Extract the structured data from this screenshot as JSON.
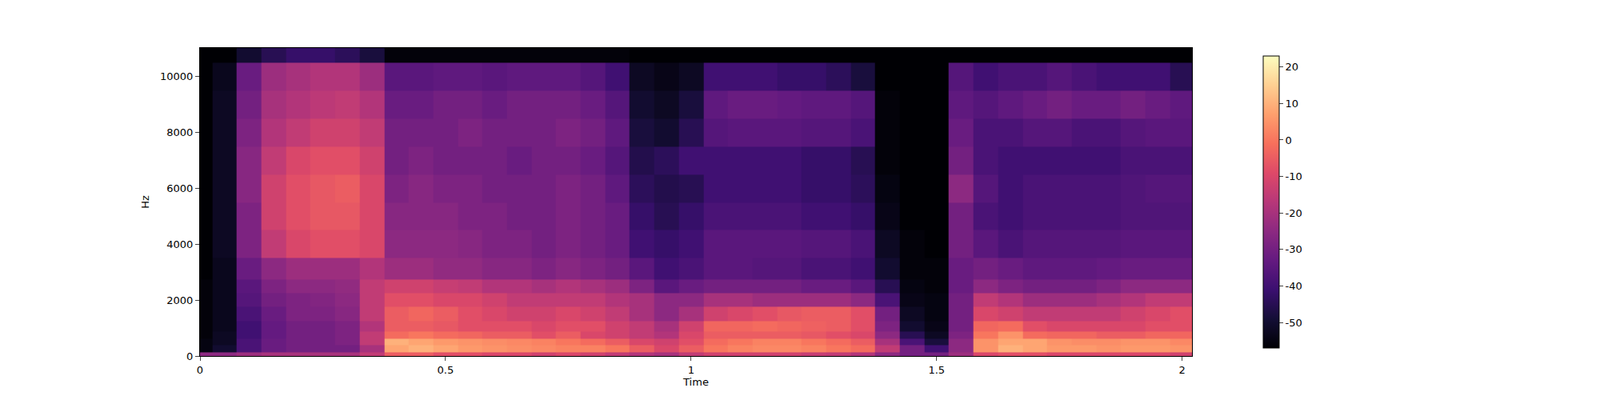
{
  "chart_data": {
    "type": "heatmap",
    "x_label": "Time",
    "y_label": "Hz",
    "xlim": [
      0,
      2.02
    ],
    "xticks": [
      0,
      0.5,
      1,
      1.5,
      2
    ],
    "ylim": [
      0,
      11025
    ],
    "yticks": [
      0,
      2000,
      4000,
      6000,
      8000,
      10000
    ],
    "zlim": [
      -57,
      23
    ],
    "zticks": [
      -50,
      -40,
      -30,
      -20,
      -10,
      0,
      10,
      20
    ],
    "x": [
      0,
      0.05,
      0.1,
      0.15,
      0.2,
      0.25,
      0.3,
      0.35,
      0.4,
      0.45,
      0.5,
      0.55,
      0.6,
      0.65,
      0.7,
      0.75,
      0.8,
      0.85,
      0.9,
      0.95,
      1.0,
      1.05,
      1.1,
      1.15,
      1.2,
      1.25,
      1.3,
      1.35,
      1.4,
      1.45,
      1.5,
      1.55,
      1.6,
      1.65,
      1.7,
      1.75,
      1.8,
      1.85,
      1.9,
      1.95,
      2.0
    ],
    "y": [
      0,
      250,
      500,
      750,
      1000,
      1500,
      2000,
      2500,
      3000,
      4000,
      5000,
      6000,
      7000,
      8000,
      9000,
      10000,
      11000
    ],
    "cells": [
      [
        -25,
        -25,
        -22,
        -20,
        -20,
        -20,
        -20,
        -15,
        -5,
        -5,
        -8,
        -8,
        -10,
        -10,
        -12,
        -10,
        -12,
        -15,
        -18,
        -20,
        -15,
        -12,
        -12,
        -12,
        -12,
        -14,
        -15,
        -18,
        -25,
        -30,
        -30,
        -22,
        -10,
        -8,
        -8,
        -10,
        -10,
        -10,
        -10,
        -10,
        -12
      ],
      [
        -55,
        -50,
        -38,
        -32,
        -30,
        -30,
        -30,
        -20,
        8,
        10,
        8,
        6,
        5,
        4,
        3,
        2,
        2,
        0,
        -5,
        -10,
        -5,
        0,
        2,
        3,
        3,
        2,
        0,
        -2,
        -15,
        -30,
        -40,
        -25,
        5,
        10,
        8,
        6,
        6,
        5,
        6,
        6,
        5
      ],
      [
        -55,
        -52,
        -38,
        -32,
        -30,
        -30,
        -28,
        -15,
        10,
        8,
        6,
        5,
        4,
        3,
        2,
        0,
        -2,
        -5,
        -10,
        -12,
        -8,
        -2,
        0,
        2,
        2,
        0,
        -2,
        -5,
        -20,
        -38,
        -48,
        -25,
        5,
        8,
        8,
        5,
        4,
        4,
        5,
        5,
        3
      ],
      [
        -56,
        -52,
        -40,
        -33,
        -30,
        -30,
        -28,
        -15,
        -2,
        0,
        -2,
        -3,
        -5,
        -5,
        -8,
        -5,
        -10,
        -12,
        -15,
        -18,
        -10,
        -5,
        -5,
        -5,
        -5,
        -6,
        -8,
        -10,
        -25,
        -45,
        -52,
        -28,
        0,
        5,
        -2,
        -3,
        -3,
        -5,
        -5,
        -3,
        -3
      ],
      [
        -56,
        -53,
        -40,
        -33,
        -30,
        -30,
        -28,
        -18,
        -5,
        -5,
        -6,
        -8,
        -8,
        -8,
        -10,
        -8,
        -8,
        -12,
        -15,
        -20,
        -12,
        -3,
        -3,
        -2,
        -3,
        -4,
        -5,
        -8,
        -28,
        -50,
        -54,
        -30,
        -3,
        -2,
        -8,
        -10,
        -10,
        -10,
        -10,
        -8,
        -8
      ],
      [
        -56,
        -53,
        -38,
        -32,
        -28,
        -28,
        -26,
        -15,
        -5,
        -3,
        -5,
        -8,
        -10,
        -12,
        -12,
        -10,
        -12,
        -15,
        -20,
        -25,
        -20,
        -12,
        -10,
        -8,
        -6,
        -5,
        -5,
        -8,
        -30,
        -52,
        -55,
        -30,
        -10,
        -12,
        -15,
        -15,
        -15,
        -15,
        -12,
        -10,
        -8
      ],
      [
        -56,
        -53,
        -36,
        -30,
        -28,
        -27,
        -25,
        -15,
        -8,
        -8,
        -10,
        -10,
        -12,
        -15,
        -15,
        -15,
        -15,
        -18,
        -20,
        -25,
        -25,
        -20,
        -20,
        -22,
        -22,
        -22,
        -22,
        -25,
        -38,
        -54,
        -55,
        -30,
        -15,
        -18,
        -22,
        -22,
        -22,
        -20,
        -18,
        -15,
        -15
      ],
      [
        -56,
        -53,
        -35,
        -28,
        -25,
        -25,
        -24,
        -15,
        -12,
        -12,
        -14,
        -15,
        -18,
        -18,
        -20,
        -18,
        -20,
        -22,
        -28,
        -35,
        -32,
        -30,
        -30,
        -30,
        -30,
        -32,
        -32,
        -35,
        -45,
        -55,
        -56,
        -32,
        -25,
        -28,
        -30,
        -30,
        -30,
        -28,
        -25,
        -25,
        -25
      ],
      [
        -57,
        -53,
        -32,
        -25,
        -22,
        -22,
        -22,
        -18,
        -22,
        -22,
        -24,
        -24,
        -26,
        -26,
        -28,
        -26,
        -28,
        -30,
        -35,
        -40,
        -38,
        -35,
        -35,
        -36,
        -36,
        -38,
        -38,
        -40,
        -50,
        -56,
        -56,
        -32,
        -30,
        -32,
        -34,
        -34,
        -34,
        -33,
        -32,
        -32,
        -32
      ],
      [
        -57,
        -52,
        -28,
        -15,
        -10,
        -8,
        -8,
        -10,
        -25,
        -25,
        -25,
        -26,
        -28,
        -28,
        -30,
        -28,
        -30,
        -32,
        -40,
        -42,
        -40,
        -35,
        -35,
        -35,
        -35,
        -36,
        -36,
        -38,
        -52,
        -56,
        -57,
        -30,
        -35,
        -38,
        -36,
        -36,
        -36,
        -36,
        -35,
        -35,
        -35
      ],
      [
        -57,
        -52,
        -28,
        -12,
        -8,
        -6,
        -6,
        -10,
        -26,
        -26,
        -26,
        -28,
        -28,
        -30,
        -30,
        -28,
        -30,
        -32,
        -42,
        -45,
        -42,
        -38,
        -38,
        -38,
        -38,
        -40,
        -40,
        -42,
        -54,
        -57,
        -57,
        -30,
        -38,
        -40,
        -38,
        -38,
        -38,
        -38,
        -37,
        -37,
        -37
      ],
      [
        -57,
        -52,
        -26,
        -12,
        -8,
        -6,
        -5,
        -10,
        -28,
        -26,
        -28,
        -28,
        -30,
        -30,
        -30,
        -28,
        -30,
        -34,
        -44,
        -46,
        -45,
        -40,
        -40,
        -40,
        -40,
        -42,
        -42,
        -44,
        -55,
        -57,
        -57,
        -25,
        -36,
        -40,
        -38,
        -38,
        -38,
        -38,
        -37,
        -36,
        -36
      ],
      [
        -57,
        -52,
        -26,
        -15,
        -10,
        -8,
        -8,
        -12,
        -30,
        -28,
        -30,
        -30,
        -30,
        -32,
        -30,
        -30,
        -32,
        -36,
        -46,
        -44,
        -40,
        -40,
        -40,
        -40,
        -40,
        -42,
        -42,
        -45,
        -56,
        -57,
        -57,
        -30,
        -38,
        -40,
        -40,
        -40,
        -40,
        -40,
        -38,
        -38,
        -38
      ],
      [
        -57,
        -52,
        -28,
        -18,
        -15,
        -12,
        -12,
        -15,
        -30,
        -30,
        -30,
        -28,
        -30,
        -30,
        -30,
        -28,
        -30,
        -34,
        -48,
        -50,
        -45,
        -36,
        -35,
        -35,
        -35,
        -36,
        -36,
        -38,
        -56,
        -57,
        -57,
        -32,
        -38,
        -38,
        -36,
        -36,
        -38,
        -38,
        -36,
        -35,
        -35
      ],
      [
        -57,
        -52,
        -30,
        -20,
        -18,
        -16,
        -15,
        -18,
        -32,
        -32,
        -30,
        -30,
        -32,
        -30,
        -30,
        -30,
        -32,
        -36,
        -50,
        -52,
        -48,
        -34,
        -32,
        -32,
        -33,
        -34,
        -34,
        -36,
        -56,
        -57,
        -57,
        -34,
        -36,
        -34,
        -32,
        -30,
        -32,
        -32,
        -30,
        -32,
        -34
      ],
      [
        -57,
        -53,
        -32,
        -22,
        -20,
        -18,
        -18,
        -22,
        -35,
        -35,
        -34,
        -34,
        -35,
        -34,
        -34,
        -34,
        -36,
        -40,
        -52,
        -54,
        -52,
        -40,
        -40,
        -40,
        -42,
        -42,
        -44,
        -48,
        -57,
        -57,
        -57,
        -36,
        -40,
        -38,
        -38,
        -36,
        -38,
        -40,
        -40,
        -40,
        -45
      ],
      [
        -57,
        -57,
        -50,
        -45,
        -42,
        -42,
        -44,
        -48,
        -56,
        -56,
        -56,
        -56,
        -56,
        -56,
        -56,
        -56,
        -56,
        -56,
        -57,
        -57,
        -57,
        -57,
        -57,
        -57,
        -57,
        -57,
        -57,
        -57,
        -57,
        -57,
        -57,
        -57,
        -57,
        -57,
        -57,
        -57,
        -57,
        -57,
        -57,
        -57,
        -57
      ]
    ]
  }
}
